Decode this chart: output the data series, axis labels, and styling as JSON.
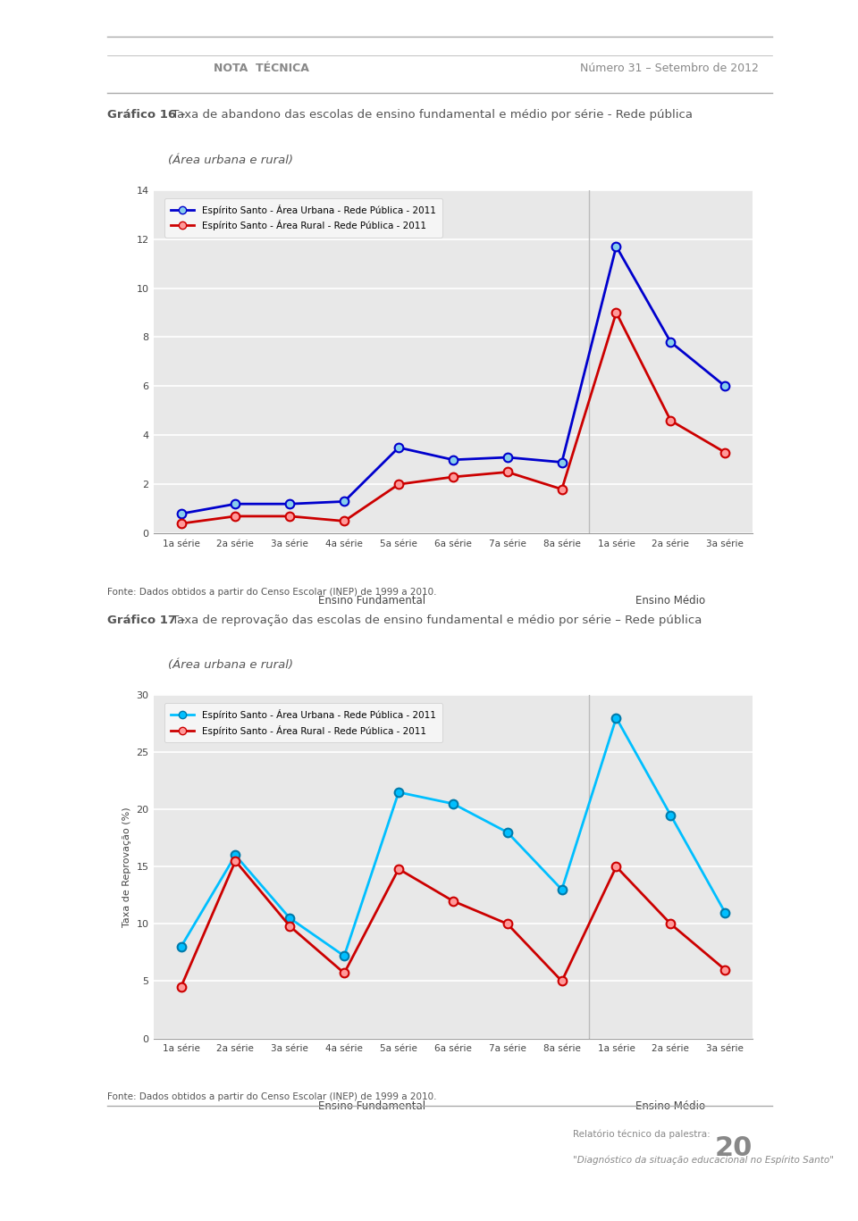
{
  "header_left": "NOTA  TÉCNICA",
  "header_right": "Número 31 – Setembro de 2012",
  "footer_page": "20",
  "chart1": {
    "title_bold": "Gráfico 16 -",
    "title_rest": " Taxa de abandono das escolas de ensino fundamental e médio por série - Rede pública",
    "title_sub": "(Área urbana e rural)",
    "xlabel_left": "Ensino Fundamental",
    "xlabel_right": "Ensino Médio",
    "ylim": [
      0,
      14
    ],
    "yticks": [
      0,
      2,
      4,
      6,
      8,
      10,
      12,
      14
    ],
    "x_labels": [
      "1a série",
      "2a série",
      "3a série",
      "4a série",
      "5a série",
      "6a série",
      "7a série",
      "8a série",
      "1a série",
      "2a série",
      "3a série"
    ],
    "source": "Fonte: Dados obtidos a partir do Censo Escolar (INEP) de 1999 a 2010.",
    "legend_urbana": "Espírito Santo - Área Urbana - Rede Pública - 2011",
    "legend_rural": "Espírito Santo - Área Rural - Rede Pública - 2011",
    "urbana_color": "#0000CD",
    "rural_color": "#CC0000",
    "urbana_marker_color": "#87CEEB",
    "rural_marker_color": "#FF9999",
    "urbana_values": [
      0.8,
      1.2,
      1.2,
      1.3,
      3.5,
      3.0,
      3.1,
      2.9,
      11.7,
      7.8,
      6.0
    ],
    "rural_values": [
      0.4,
      0.7,
      0.7,
      0.5,
      2.0,
      2.3,
      2.5,
      1.8,
      9.0,
      4.6,
      3.3
    ]
  },
  "chart2": {
    "title_bold": "Gráfico 17 -",
    "title_rest": " Taxa de reprovação das escolas de ensino fundamental e médio por série – Rede pública",
    "title_sub": "(Área urbana e rural)",
    "xlabel_left": "Ensino Fundamental",
    "xlabel_right": "Ensino Médio",
    "ylabel": "Taxa de Reprovação (%)",
    "ylim": [
      0,
      30
    ],
    "yticks": [
      0,
      5,
      10,
      15,
      20,
      25,
      30
    ],
    "x_labels": [
      "1a série",
      "2a série",
      "3a série",
      "4a série",
      "5a série",
      "6a série",
      "7a série",
      "8a série",
      "1a série",
      "2a série",
      "3a série"
    ],
    "source": "Fonte: Dados obtidos a partir do Censo Escolar (INEP) de 1999 a 2010.",
    "legend_urbana": "Espírito Santo - Área Urbana - Rede Pública - 2011",
    "legend_rural": "Espírito Santo - Área Rural - Rede Pública - 2011",
    "urbana_color": "#00BFFF",
    "rural_color": "#CC0000",
    "urbana_marker_color": "#00BFFF",
    "rural_marker_color": "#FF9999",
    "urbana_edge_color": "#007AAA",
    "urbana_values": [
      8.0,
      16.0,
      10.5,
      7.2,
      21.5,
      20.5,
      18.0,
      13.0,
      28.0,
      19.5,
      11.0
    ],
    "rural_values": [
      4.5,
      15.5,
      9.8,
      5.7,
      14.8,
      12.0,
      10.0,
      5.0,
      15.0,
      10.0,
      6.0
    ]
  },
  "plot_bg_color": "#e8e8e8",
  "grid_color": "#ffffff",
  "page_bg": "#ffffff"
}
